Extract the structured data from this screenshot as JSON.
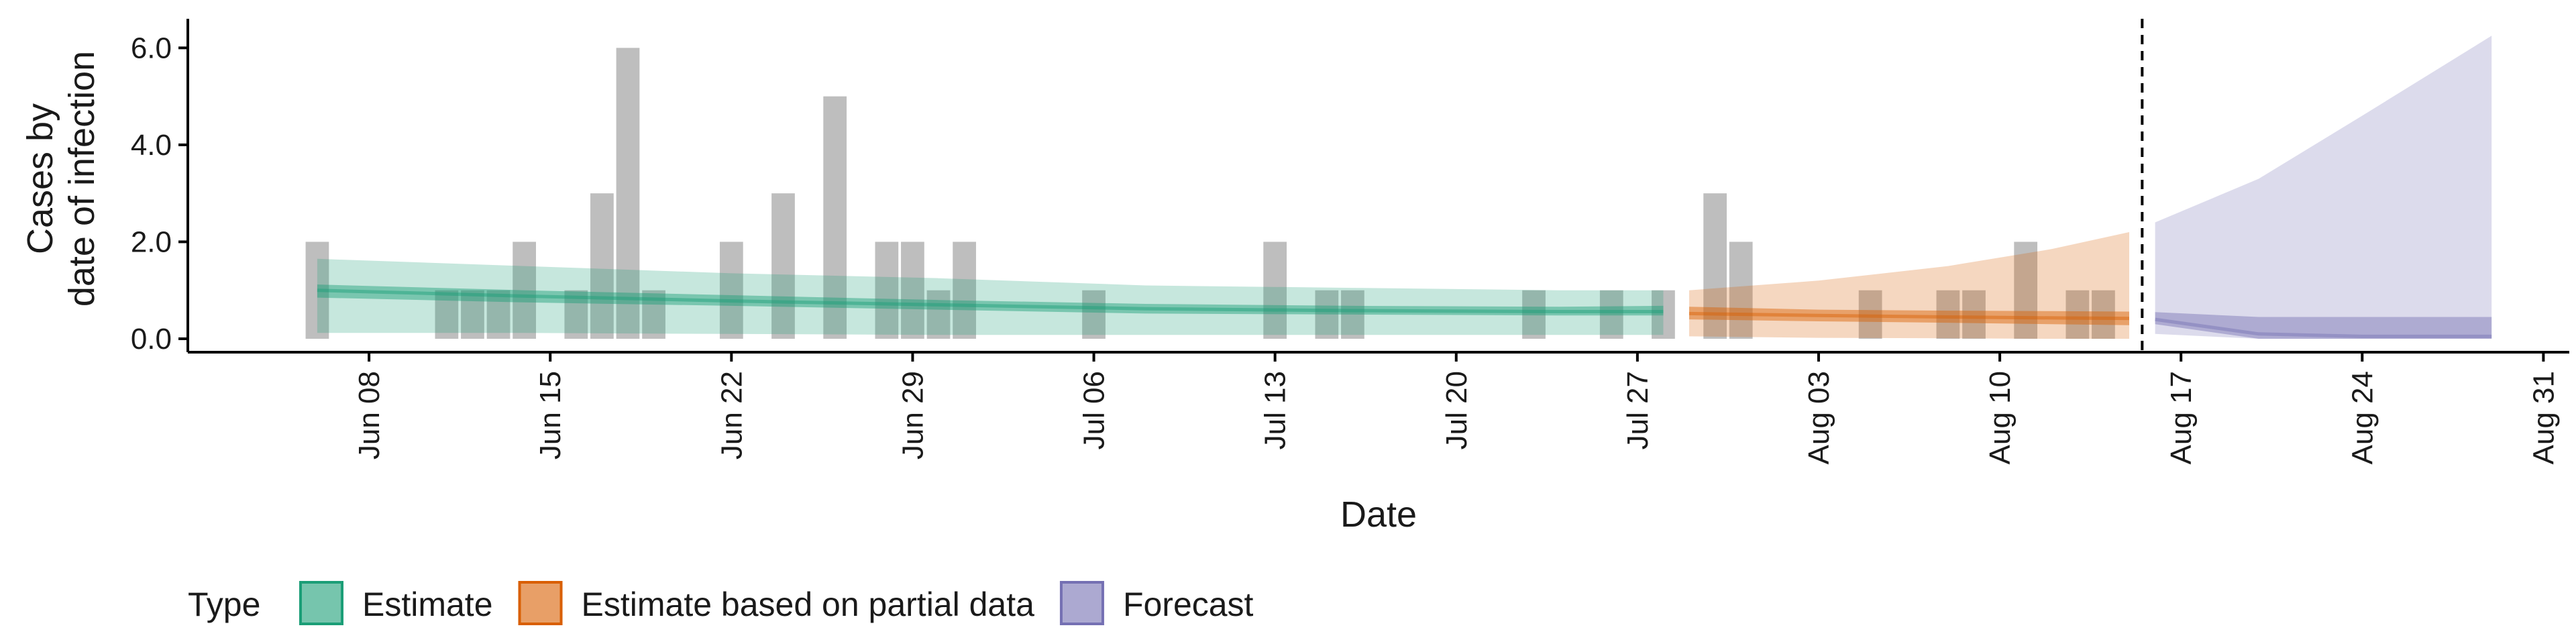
{
  "chart_data": {
    "type": "area",
    "title": "",
    "xlabel": "Date",
    "ylabel": [
      "Cases by",
      "date of infection"
    ],
    "x_range": [
      "2021-06-01",
      "2021-09-01"
    ],
    "ylim": [
      0,
      6.6
    ],
    "y_ticks": [
      {
        "value": 0,
        "label": "0.0"
      },
      {
        "value": 2,
        "label": "2.0"
      },
      {
        "value": 4,
        "label": "4.0"
      },
      {
        "value": 6,
        "label": "6.0"
      }
    ],
    "x_ticks": [
      {
        "date": "2021-06-08",
        "label": "Jun 08"
      },
      {
        "date": "2021-06-15",
        "label": "Jun 15"
      },
      {
        "date": "2021-06-22",
        "label": "Jun 22"
      },
      {
        "date": "2021-06-29",
        "label": "Jun 29"
      },
      {
        "date": "2021-07-06",
        "label": "Jul 06"
      },
      {
        "date": "2021-07-13",
        "label": "Jul 13"
      },
      {
        "date": "2021-07-20",
        "label": "Jul 20"
      },
      {
        "date": "2021-07-27",
        "label": "Jul 27"
      },
      {
        "date": "2021-08-03",
        "label": "Aug 03"
      },
      {
        "date": "2021-08-10",
        "label": "Aug 10"
      },
      {
        "date": "2021-08-17",
        "label": "Aug 17"
      },
      {
        "date": "2021-08-24",
        "label": "Aug 24"
      },
      {
        "date": "2021-08-31",
        "label": "Aug 31"
      }
    ],
    "forecast_cutoff_date": "2021-08-15",
    "reported_cases": [
      {
        "date": "2021-06-06",
        "value": 2
      },
      {
        "date": "2021-06-09",
        "value": 0
      },
      {
        "date": "2021-06-10",
        "value": 0
      },
      {
        "date": "2021-06-11",
        "value": 1
      },
      {
        "date": "2021-06-12",
        "value": 1
      },
      {
        "date": "2021-06-13",
        "value": 1
      },
      {
        "date": "2021-06-14",
        "value": 2
      },
      {
        "date": "2021-06-16",
        "value": 1
      },
      {
        "date": "2021-06-17",
        "value": 3
      },
      {
        "date": "2021-06-18",
        "value": 6
      },
      {
        "date": "2021-06-19",
        "value": 1
      },
      {
        "date": "2021-06-22",
        "value": 2
      },
      {
        "date": "2021-06-24",
        "value": 3
      },
      {
        "date": "2021-06-26",
        "value": 5
      },
      {
        "date": "2021-06-28",
        "value": 2
      },
      {
        "date": "2021-06-29",
        "value": 2
      },
      {
        "date": "2021-06-30",
        "value": 1
      },
      {
        "date": "2021-07-01",
        "value": 2
      },
      {
        "date": "2021-07-06",
        "value": 1
      },
      {
        "date": "2021-07-13",
        "value": 2
      },
      {
        "date": "2021-07-15",
        "value": 1
      },
      {
        "date": "2021-07-16",
        "value": 1
      },
      {
        "date": "2021-07-23",
        "value": 1
      },
      {
        "date": "2021-07-26",
        "value": 1
      },
      {
        "date": "2021-07-28",
        "value": 1
      },
      {
        "date": "2021-07-30",
        "value": 3
      },
      {
        "date": "2021-07-31",
        "value": 2
      },
      {
        "date": "2021-08-05",
        "value": 1
      },
      {
        "date": "2021-08-08",
        "value": 1
      },
      {
        "date": "2021-08-09",
        "value": 1
      },
      {
        "date": "2021-08-11",
        "value": 2
      },
      {
        "date": "2021-08-13",
        "value": 1
      },
      {
        "date": "2021-08-14",
        "value": 1
      }
    ],
    "series": [
      {
        "name": "Estimate",
        "color": "#1b9e77",
        "points": [
          {
            "date": "2021-06-06",
            "lower": 0.12,
            "q25": 0.85,
            "median": 1.0,
            "q75": 1.12,
            "upper": 1.65
          },
          {
            "date": "2021-06-14",
            "lower": 0.12,
            "q25": 0.75,
            "median": 0.88,
            "q75": 1.0,
            "upper": 1.5
          },
          {
            "date": "2021-06-22",
            "lower": 0.1,
            "q25": 0.68,
            "median": 0.78,
            "q75": 0.9,
            "upper": 1.35
          },
          {
            "date": "2021-06-30",
            "lower": 0.08,
            "q25": 0.6,
            "median": 0.7,
            "q75": 0.8,
            "upper": 1.25
          },
          {
            "date": "2021-07-08",
            "lower": 0.08,
            "q25": 0.52,
            "median": 0.62,
            "q75": 0.72,
            "upper": 1.1
          },
          {
            "date": "2021-07-16",
            "lower": 0.08,
            "q25": 0.5,
            "median": 0.58,
            "q75": 0.68,
            "upper": 1.05
          },
          {
            "date": "2021-07-24",
            "lower": 0.08,
            "q25": 0.48,
            "median": 0.56,
            "q75": 0.66,
            "upper": 1.0
          },
          {
            "date": "2021-07-28",
            "lower": 0.08,
            "q25": 0.48,
            "median": 0.56,
            "q75": 0.68,
            "upper": 1.0
          }
        ]
      },
      {
        "name": "Estimate based on partial data",
        "color": "#d95f02",
        "points": [
          {
            "date": "2021-07-29",
            "lower": 0.05,
            "q25": 0.4,
            "median": 0.52,
            "q75": 0.66,
            "upper": 1.0
          },
          {
            "date": "2021-08-03",
            "lower": 0.02,
            "q25": 0.36,
            "median": 0.48,
            "q75": 0.6,
            "upper": 1.2
          },
          {
            "date": "2021-08-08",
            "lower": 0.01,
            "q25": 0.33,
            "median": 0.45,
            "q75": 0.58,
            "upper": 1.5
          },
          {
            "date": "2021-08-12",
            "lower": 0.0,
            "q25": 0.3,
            "median": 0.43,
            "q75": 0.57,
            "upper": 1.85
          },
          {
            "date": "2021-08-15",
            "lower": 0.0,
            "q25": 0.28,
            "median": 0.42,
            "q75": 0.56,
            "upper": 2.2
          }
        ]
      },
      {
        "name": "Forecast",
        "color": "#7570b3",
        "points": [
          {
            "date": "2021-08-16",
            "lower": 0.1,
            "q25": 0.3,
            "median": 0.4,
            "q75": 0.55,
            "upper": 2.4
          },
          {
            "date": "2021-08-20",
            "lower": 0.0,
            "q25": 0.0,
            "median": 0.1,
            "q75": 0.45,
            "upper": 3.3
          },
          {
            "date": "2021-08-24",
            "lower": 0.0,
            "q25": 0.0,
            "median": 0.05,
            "q75": 0.45,
            "upper": 4.6
          },
          {
            "date": "2021-08-29",
            "lower": 0.0,
            "q25": 0.0,
            "median": 0.05,
            "q75": 0.45,
            "upper": 6.25
          }
        ]
      }
    ],
    "legend": {
      "title": "Type",
      "position": "bottom",
      "items": [
        {
          "label": "Estimate",
          "color": "#1b9e77"
        },
        {
          "label": "Estimate based on partial data",
          "color": "#d95f02"
        },
        {
          "label": "Forecast",
          "color": "#7570b3"
        }
      ]
    },
    "grid": false
  }
}
